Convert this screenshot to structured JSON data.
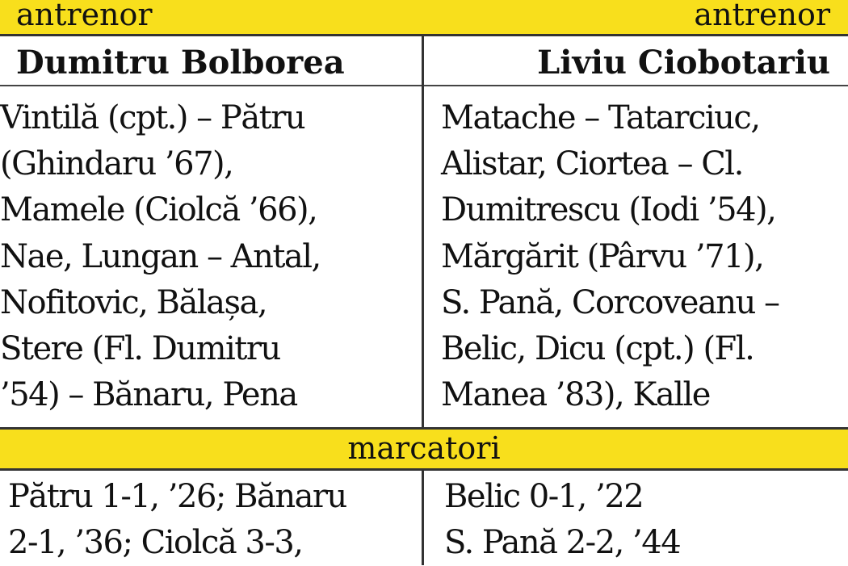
{
  "header": {
    "left_label": "antrenor",
    "right_label": "antrenor"
  },
  "coaches": {
    "home": "Dumitru Bolborea",
    "away": "Liviu Ciobotariu"
  },
  "lineups": {
    "home": [
      "Vintilă (cpt.) – Pătru",
      "(Ghindaru ’67),",
      "Mamele (Ciolcă ’66),",
      "Nae, Lungan – Antal,",
      "Nofitovic, Bălașa,",
      "Stere (Fl. Dumitru",
      "’54) – Bănaru, Pena"
    ],
    "away": [
      "Matache – Tatarciuc,",
      "Alistar, Ciortea – Cl.",
      "Dumitrescu (Iodi ’54),",
      "Mărgărit (Pârvu ’71),",
      "S. Pană, Corcoveanu –",
      "Belic, Dicu (cpt.) (Fl.",
      "Manea ’83), Kalle"
    ]
  },
  "scorers_section": {
    "label": "marcatori",
    "home": [
      "Pătru  1-1, ’26; Bănaru",
      "2-1, ’36; Ciolcă 3-3,"
    ],
    "away": [
      "Belic 0-1, ’22",
      "S. Pană 2-2, ’44"
    ]
  },
  "colors": {
    "band": "#f8df1c"
  }
}
